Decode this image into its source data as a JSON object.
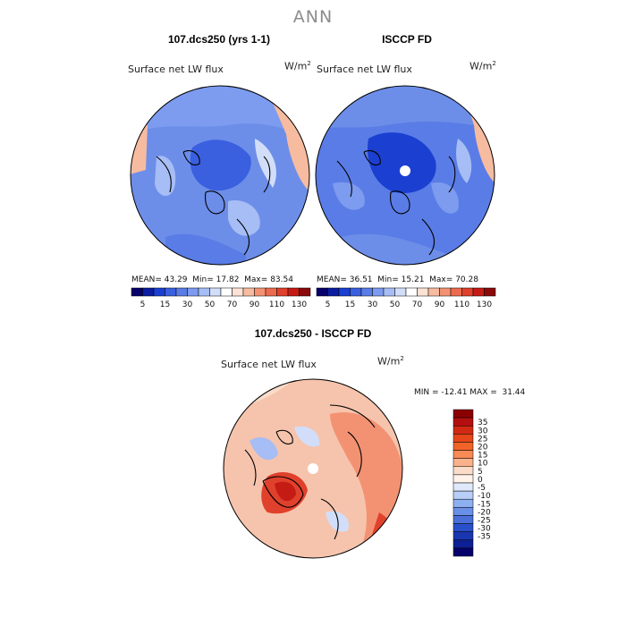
{
  "title": "ANN",
  "panels": [
    {
      "title": "107.dcs250 (yrs 1-1)",
      "field": "Surface net LW flux",
      "units_base": "W/m",
      "units_exp": "2",
      "stats": {
        "mean_label": "MEAN=",
        "mean": "43.29",
        "min_label": "Min=",
        "min": "17.82",
        "max_label": "Max=",
        "max": "83.54"
      }
    },
    {
      "title": "ISCCP FD",
      "field": "Surface net LW flux",
      "units_base": "W/m",
      "units_exp": "2",
      "stats": {
        "mean_label": "MEAN=",
        "mean": "36.51",
        "min_label": "Min=",
        "min": "15.21",
        "max_label": "Max=",
        "max": "70.28"
      }
    },
    {
      "title": "107.dcs250 - ISCCP FD",
      "field": "Surface net LW flux",
      "units_base": "W/m",
      "units_exp": "2",
      "stats_line": "MIN = -12.41 MAX =  31.44"
    }
  ],
  "horizontal_colorbar": {
    "colors": [
      "#08006b",
      "#0b1ea0",
      "#1b3fd0",
      "#3a60e0",
      "#5a7ce6",
      "#7d9bef",
      "#a6bdf5",
      "#d2def9",
      "#ffffff",
      "#fbe2d4",
      "#f7bba0",
      "#f39273",
      "#ec6a4d",
      "#e0412c",
      "#c41c15",
      "#8a0a0a"
    ],
    "tick_labels": [
      "5",
      "15",
      "30",
      "50",
      "70",
      "90",
      "110",
      "130"
    ]
  },
  "vertical_colorbar": {
    "colors": [
      "#8a0000",
      "#b40f0f",
      "#d12a14",
      "#e5471b",
      "#f06429",
      "#f78a55",
      "#f9b28d",
      "#fbdccb",
      "#fff3ea",
      "#dfe9fb",
      "#b8cef6",
      "#8fb0f0",
      "#6a8fe6",
      "#4a6fd8",
      "#2a4fcb",
      "#1a35b0",
      "#0d1f92",
      "#06006a"
    ],
    "tick_labels": [
      "35",
      "30",
      "25",
      "20",
      "15",
      "10",
      "5",
      "0",
      "-5",
      "-10",
      "-15",
      "-20",
      "-25",
      "-30",
      "-35"
    ]
  },
  "colors": {
    "map_fill_model": "#5f85e6",
    "map_fill_obs": "#4e75e0",
    "map_fill_diff": "#f6b497",
    "title_gray": "#8c8c8c"
  }
}
